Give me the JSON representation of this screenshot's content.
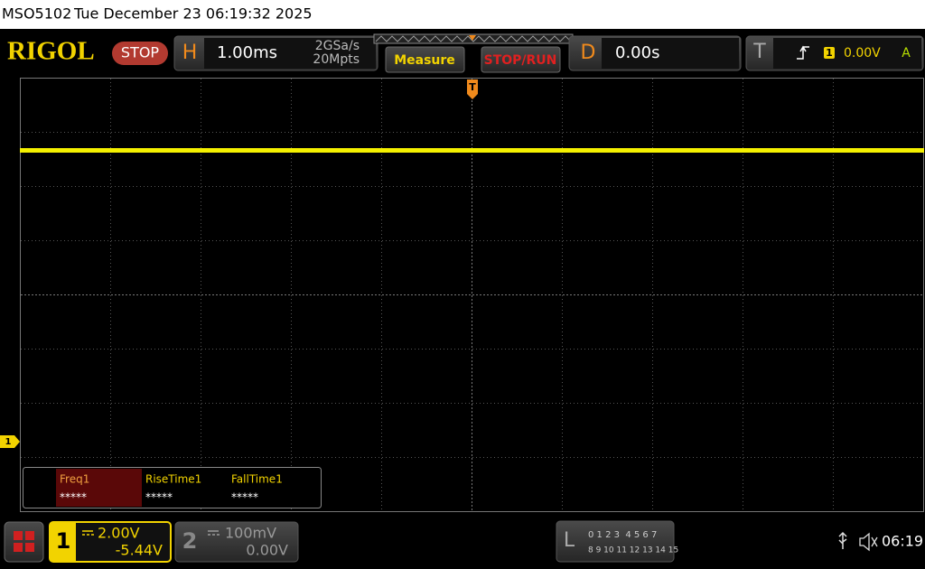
{
  "status_bar": {
    "model": "MSO5102",
    "datetime": "Tue December 23 06:19:32 2025"
  },
  "toolbar": {
    "logo": "RIGOL",
    "run_state": "STOP",
    "horizontal": {
      "label": "H",
      "timebase": "1.00ms",
      "sample_rate": "2GSa/s",
      "memory_depth": "20Mpts"
    },
    "measure_button": "Measure",
    "stop_run_button": "STOP/RUN",
    "delay": {
      "label": "D",
      "value": "0.00s"
    },
    "trigger": {
      "label": "T",
      "source": "1",
      "level": "0.00V",
      "mode": "A"
    }
  },
  "waveform_area": {
    "trigger_marker": "T",
    "channel_marker": "1"
  },
  "measurements": [
    {
      "name": "Freq1",
      "value": "*****"
    },
    {
      "name": "RiseTime1",
      "value": "*****"
    },
    {
      "name": "FallTime1",
      "value": "*****"
    }
  ],
  "bottom_bar": {
    "channel1": {
      "label": "1",
      "scale": "2.00V",
      "offset": "-5.44V"
    },
    "channel2": {
      "label": "2",
      "scale": "100mV",
      "offset": "0.00V"
    },
    "logic": {
      "label": "L",
      "row1": "0 1 2 3  4 5 6 7",
      "row2": "8 9 10 11 12 13 14 15"
    },
    "time": "06:19"
  }
}
